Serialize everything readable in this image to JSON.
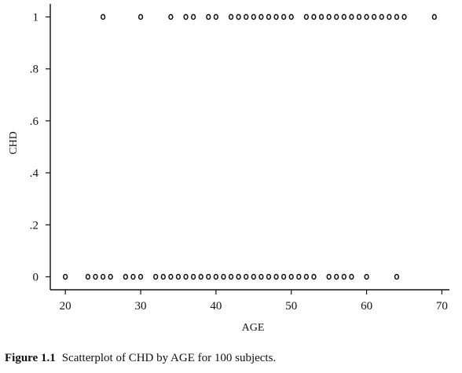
{
  "caption": {
    "label": "Figure 1.1",
    "text": "Scatterplot of CHD by AGE for 100 subjects."
  },
  "chart_data": {
    "type": "scatter",
    "title": "",
    "xlabel": "AGE",
    "ylabel": "CHD",
    "xlim": [
      18,
      71
    ],
    "ylim": [
      -0.05,
      1.05
    ],
    "xticks": [
      20,
      30,
      40,
      50,
      60,
      70
    ],
    "xtick_labels": [
      "20",
      "30",
      "40",
      "50",
      "60",
      "70"
    ],
    "yticks": [
      0,
      0.2,
      0.4,
      0.6,
      0.8,
      1
    ],
    "ytick_labels": [
      "0",
      ".2",
      ".4",
      ".6",
      ".8",
      "1"
    ],
    "grid": false,
    "legend": "none",
    "marker": "hollow-circle",
    "series": [
      {
        "x": [
          20,
          23,
          24,
          25,
          26,
          28,
          29,
          30,
          32,
          33,
          34,
          35,
          36,
          37,
          38,
          39,
          40,
          41,
          42,
          43,
          44,
          45,
          46,
          47,
          48,
          49,
          50,
          51,
          52,
          53,
          55,
          56,
          57,
          58,
          60,
          64,
          25,
          30,
          34,
          36,
          37,
          39,
          40,
          42,
          43,
          44,
          45,
          46,
          47,
          48,
          49,
          50,
          52,
          53,
          54,
          55,
          56,
          57,
          58,
          59,
          60,
          61,
          62,
          63,
          64,
          65,
          69
        ],
        "y": [
          0,
          0,
          0,
          0,
          0,
          0,
          0,
          0,
          0,
          0,
          0,
          0,
          0,
          0,
          0,
          0,
          0,
          0,
          0,
          0,
          0,
          0,
          0,
          0,
          0,
          0,
          0,
          0,
          0,
          0,
          0,
          0,
          0,
          0,
          0,
          0,
          1,
          1,
          1,
          1,
          1,
          1,
          1,
          1,
          1,
          1,
          1,
          1,
          1,
          1,
          1,
          1,
          1,
          1,
          1,
          1,
          1,
          1,
          1,
          1,
          1,
          1,
          1,
          1,
          1,
          1,
          1
        ]
      }
    ]
  }
}
